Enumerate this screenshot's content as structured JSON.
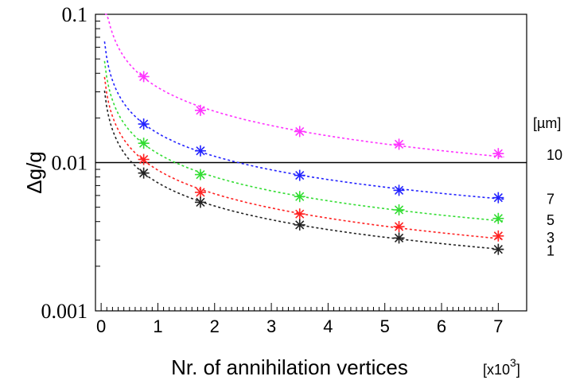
{
  "chart_data": {
    "type": "scatter",
    "ylabel": "Δg/g",
    "xlabel": "Nr. of annihilation vertices",
    "x_multiplier_label": "[x10",
    "x_multiplier_exp": "3",
    "x_multiplier_close": "]",
    "xlim": [
      -0.1,
      7.5
    ],
    "ylim": [
      0.001,
      0.1
    ],
    "yscale": "log",
    "xticks": [
      0,
      1,
      2,
      3,
      4,
      5,
      6,
      7
    ],
    "xtick_labels": [
      "0",
      "1",
      "2",
      "3",
      "4",
      "5",
      "6",
      "7"
    ],
    "yticks": [
      0.1,
      0.01,
      0.001
    ],
    "ytick_labels": [
      "0.1",
      "0.01",
      "0.001"
    ],
    "reference_line": 0.01,
    "legend_unit": "[µm]",
    "series": [
      {
        "name": "10",
        "color": "#ff33ff",
        "x": [
          0.75,
          1.75,
          3.5,
          5.25,
          7.0
        ],
        "y": [
          0.038,
          0.0225,
          0.0162,
          0.0133,
          0.0115
        ]
      },
      {
        "name": "7",
        "color": "#2222ff",
        "x": [
          0.75,
          1.75,
          3.5,
          5.25,
          7.0
        ],
        "y": [
          0.0182,
          0.012,
          0.0082,
          0.0065,
          0.0058
        ]
      },
      {
        "name": "5",
        "color": "#33dd33",
        "x": [
          0.75,
          1.75,
          3.5,
          5.25,
          7.0
        ],
        "y": [
          0.0135,
          0.0083,
          0.0059,
          0.0048,
          0.0042
        ]
      },
      {
        "name": "3",
        "color": "#ff2222",
        "x": [
          0.75,
          1.75,
          3.5,
          5.25,
          7.0
        ],
        "y": [
          0.0105,
          0.0063,
          0.0045,
          0.0037,
          0.0032
        ]
      },
      {
        "name": "1",
        "color": "#222222",
        "x": [
          0.75,
          1.75,
          3.5,
          5.25,
          7.0
        ],
        "y": [
          0.0085,
          0.0054,
          0.0038,
          0.0031,
          0.0026
        ]
      }
    ]
  }
}
